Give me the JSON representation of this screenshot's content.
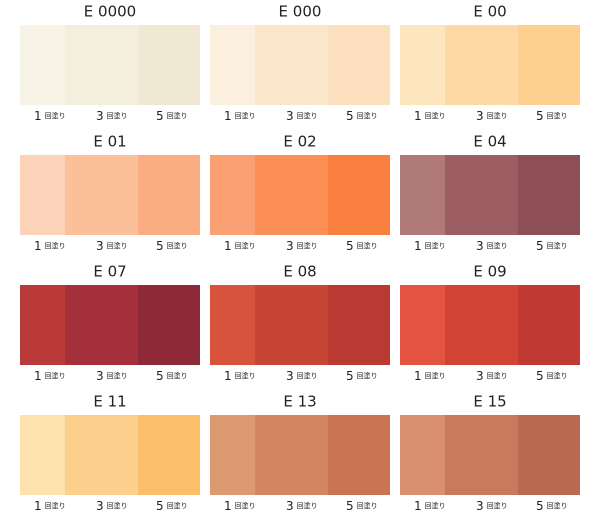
{
  "coat_labels": [
    {
      "count": 1,
      "unit": "回塗り"
    },
    {
      "count": 3,
      "unit": "回塗り"
    },
    {
      "count": 5,
      "unit": "回塗り"
    }
  ],
  "swatches": [
    {
      "name": "E 0000",
      "colors": [
        "#f7f3e6",
        "#f4eedc",
        "#f1e8d3"
      ]
    },
    {
      "name": "E 000",
      "colors": [
        "#fbf0dd",
        "#fae6c9",
        "#fbdfbe"
      ]
    },
    {
      "name": "E 00",
      "colors": [
        "#fde6bd",
        "#fdd9a3",
        "#fdd090"
      ]
    },
    {
      "name": "E 01",
      "colors": [
        "#fcd2b8",
        "#fbc09a",
        "#f9ad80"
      ]
    },
    {
      "name": "E 02",
      "colors": [
        "#fba072",
        "#fb8f55",
        "#fa8040"
      ]
    },
    {
      "name": "E 04",
      "colors": [
        "#b07a78",
        "#9c5e62",
        "#8d4e56"
      ]
    },
    {
      "name": "E 07",
      "colors": [
        "#b93a38",
        "#a3303a",
        "#8e2a38"
      ]
    },
    {
      "name": "E 08",
      "colors": [
        "#d8533c",
        "#c74534",
        "#b83a32"
      ]
    },
    {
      "name": "E 09",
      "colors": [
        "#e25440",
        "#d04436",
        "#c03a33"
      ]
    },
    {
      "name": "E 11",
      "colors": [
        "#fde2ad",
        "#fcd08c",
        "#fbbf6c"
      ]
    },
    {
      "name": "E 13",
      "colors": [
        "#dc9a72",
        "#d38660",
        "#c97552"
      ]
    },
    {
      "name": "E 15",
      "colors": [
        "#d89070",
        "#c97a5c",
        "#bb6a52"
      ]
    }
  ]
}
